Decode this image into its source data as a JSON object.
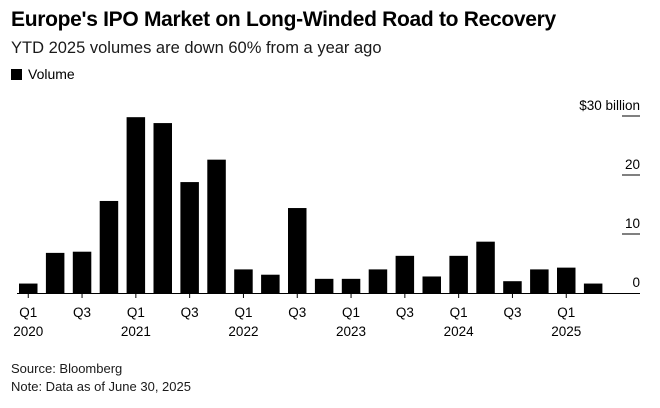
{
  "header": {
    "title": "Europe's IPO Market on Long-Winded Road to Recovery",
    "subtitle": "YTD 2025 volumes are down 60% from a year ago"
  },
  "legend": {
    "label": "Volume"
  },
  "footer": {
    "source": "Source: Bloomberg",
    "note": "Note: Data as of June 30, 2025"
  },
  "colors": {
    "bar": "#000000",
    "grid": "#000000"
  },
  "chart_data": {
    "type": "bar",
    "title": "Europe's IPO Market on Long-Winded Road to Recovery",
    "subtitle": "YTD 2025 volumes are down 60% from a year ago",
    "ylabel": "Volume",
    "ylim": [
      0,
      30
    ],
    "y_ticks": [
      {
        "value": 0,
        "label": "0"
      },
      {
        "value": 10,
        "label": "10"
      },
      {
        "value": 20,
        "label": "20"
      },
      {
        "value": 30,
        "label": "$30 billion"
      }
    ],
    "categories": [
      "Q1 2020",
      "Q2 2020",
      "Q3 2020",
      "Q4 2020",
      "Q1 2021",
      "Q2 2021",
      "Q3 2021",
      "Q4 2021",
      "Q1 2022",
      "Q2 2022",
      "Q3 2022",
      "Q4 2022",
      "Q1 2023",
      "Q2 2023",
      "Q3 2023",
      "Q4 2023",
      "Q1 2024",
      "Q2 2024",
      "Q3 2024",
      "Q4 2024",
      "Q1 2025",
      "Q2 2025"
    ],
    "values": [
      1.6,
      6.8,
      7.0,
      15.6,
      29.8,
      28.8,
      18.8,
      22.6,
      4.0,
      3.1,
      14.4,
      2.4,
      2.4,
      4.0,
      6.3,
      2.8,
      6.3,
      8.7,
      2.0,
      4.0,
      4.3,
      1.6
    ],
    "x_tick_labels": [
      {
        "index": 0,
        "label": "Q1",
        "year": "2020"
      },
      {
        "index": 2,
        "label": "Q3"
      },
      {
        "index": 4,
        "label": "Q1",
        "year": "2021"
      },
      {
        "index": 6,
        "label": "Q3"
      },
      {
        "index": 8,
        "label": "Q1",
        "year": "2022"
      },
      {
        "index": 10,
        "label": "Q3"
      },
      {
        "index": 12,
        "label": "Q1",
        "year": "2023"
      },
      {
        "index": 14,
        "label": "Q3"
      },
      {
        "index": 16,
        "label": "Q1",
        "year": "2024"
      },
      {
        "index": 18,
        "label": "Q3"
      },
      {
        "index": 20,
        "label": "Q1",
        "year": "2025"
      }
    ],
    "grid": true
  }
}
